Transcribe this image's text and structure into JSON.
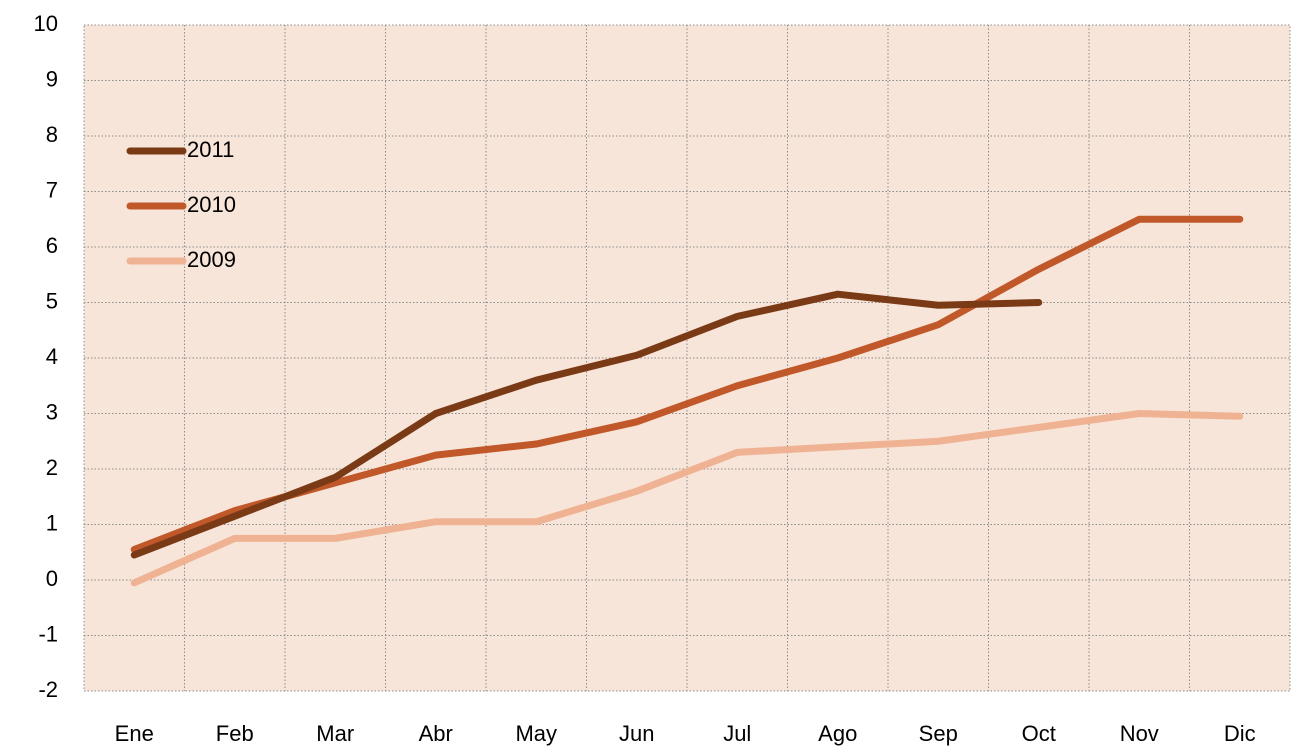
{
  "chart_data": {
    "type": "line",
    "categories": [
      "Ene",
      "Feb",
      "Mar",
      "Abr",
      "May",
      "Jun",
      "Jul",
      "Ago",
      "Sep",
      "Oct",
      "Nov",
      "Dic"
    ],
    "series": [
      {
        "name": "2011",
        "color": "#7b3a16",
        "values": [
          0.45,
          1.15,
          1.85,
          3.0,
          3.6,
          4.05,
          4.75,
          5.15,
          4.95,
          5.0,
          null,
          null
        ]
      },
      {
        "name": "2010",
        "color": "#c0582a",
        "values": [
          0.55,
          1.25,
          1.75,
          2.25,
          2.45,
          2.85,
          3.5,
          4.0,
          4.6,
          5.6,
          6.5,
          6.5
        ]
      },
      {
        "name": "2009",
        "color": "#efb393",
        "values": [
          -0.05,
          0.75,
          0.75,
          1.05,
          1.05,
          1.6,
          2.3,
          2.4,
          2.5,
          2.75,
          3.0,
          2.95
        ]
      }
    ],
    "ylim": [
      -2,
      10
    ],
    "yticks": [
      -2,
      -1,
      0,
      1,
      2,
      3,
      4,
      5,
      6,
      7,
      8,
      9,
      10
    ],
    "grid": true,
    "legend": "upper left",
    "background": "#f8e5d9"
  }
}
